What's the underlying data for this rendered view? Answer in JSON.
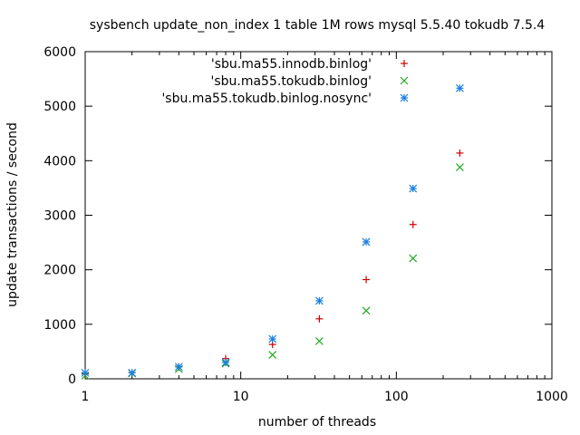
{
  "chart_data": {
    "type": "scatter",
    "title": "sysbench update_non_index 1 table 1M rows mysql 5.5.40 tokudb 7.5.4",
    "xlabel": "number of threads",
    "ylabel": "update transactions / second",
    "xscale": "log",
    "xlim": [
      1,
      1000
    ],
    "ylim": [
      0,
      6000
    ],
    "x_ticks": [
      1,
      10,
      100,
      1000
    ],
    "x_tick_labels": [
      "1",
      "10",
      "100",
      "1000"
    ],
    "y_ticks": [
      0,
      1000,
      2000,
      3000,
      4000,
      5000,
      6000
    ],
    "y_tick_labels": [
      "0",
      "1000",
      "2000",
      "3000",
      "4000",
      "5000",
      "6000"
    ],
    "grid": false,
    "legend_position": "top-right",
    "series": [
      {
        "name": "'sbu.ma55.innodb.binlog'",
        "marker": "plus",
        "color": "#cc0000",
        "x": [
          1,
          2,
          4,
          8,
          16,
          32,
          64,
          128,
          256
        ],
        "y": [
          90,
          110,
          220,
          370,
          630,
          1100,
          1820,
          2830,
          4140
        ]
      },
      {
        "name": "'sbu.ma55.tokudb.binlog'",
        "marker": "cross",
        "color": "#22aa22",
        "x": [
          1,
          2,
          4,
          8,
          16,
          32,
          64,
          128,
          256
        ],
        "y": [
          60,
          100,
          180,
          280,
          440,
          690,
          1250,
          2210,
          3880
        ]
      },
      {
        "name": "'sbu.ma55.tokudb.binlog.nosync'",
        "marker": "star",
        "color": "#1a7fe0",
        "x": [
          1,
          2,
          4,
          8,
          16,
          32,
          64,
          128,
          256
        ],
        "y": [
          110,
          110,
          220,
          300,
          730,
          1430,
          2510,
          3490,
          5330
        ]
      }
    ]
  }
}
